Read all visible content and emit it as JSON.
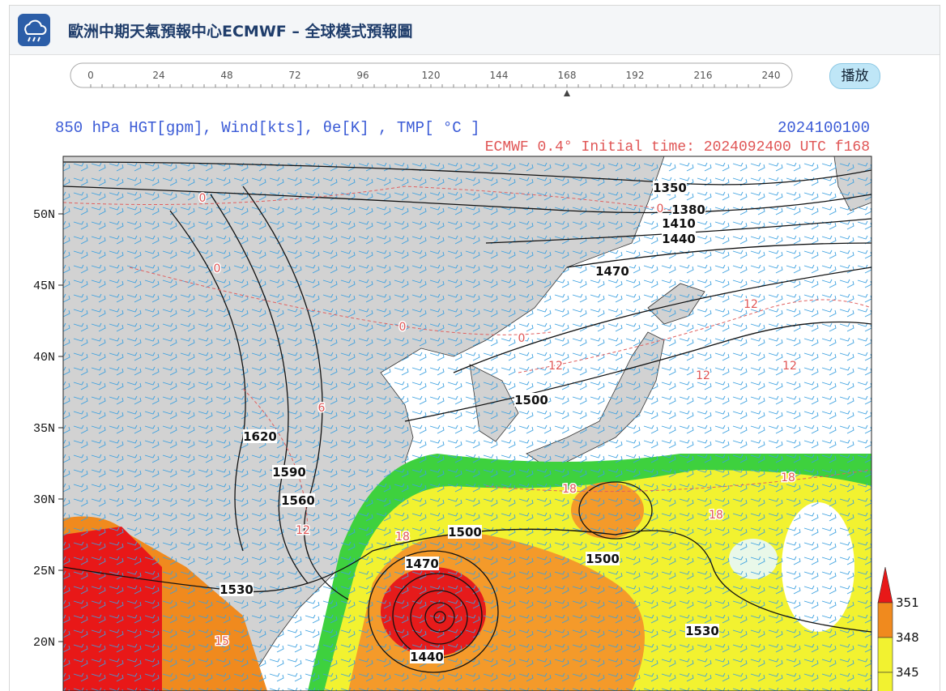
{
  "header": {
    "title": "歐洲中期天氣預報中心ECMWF – 全球模式預報圖"
  },
  "timeline": {
    "ticks": [
      0,
      24,
      48,
      72,
      96,
      120,
      144,
      168,
      192,
      216,
      240
    ],
    "play_button": "播放"
  },
  "map": {
    "title": "850 hPa  HGT[gpm], Wind[kts], θe[K] , TMP[ °C ]",
    "valid_time": "2024100100",
    "subtitle": "ECMWF 0.4° Initial time: 2024092400 UTC f168",
    "lat_labels": [
      "50N",
      "45N",
      "40N",
      "35N",
      "30N",
      "25N",
      "20N"
    ],
    "height_labels": [
      1350,
      1380,
      1410,
      1440,
      1470,
      1500,
      1620,
      1590,
      1560,
      1530,
      1500,
      1470,
      1440,
      1500,
      1530
    ],
    "temperature_labels": [
      0,
      0,
      0,
      0,
      0,
      6,
      12,
      12,
      12,
      12,
      12,
      18,
      18,
      18,
      18,
      15
    ],
    "colorbar_labels": [
      351,
      348,
      345
    ]
  }
}
